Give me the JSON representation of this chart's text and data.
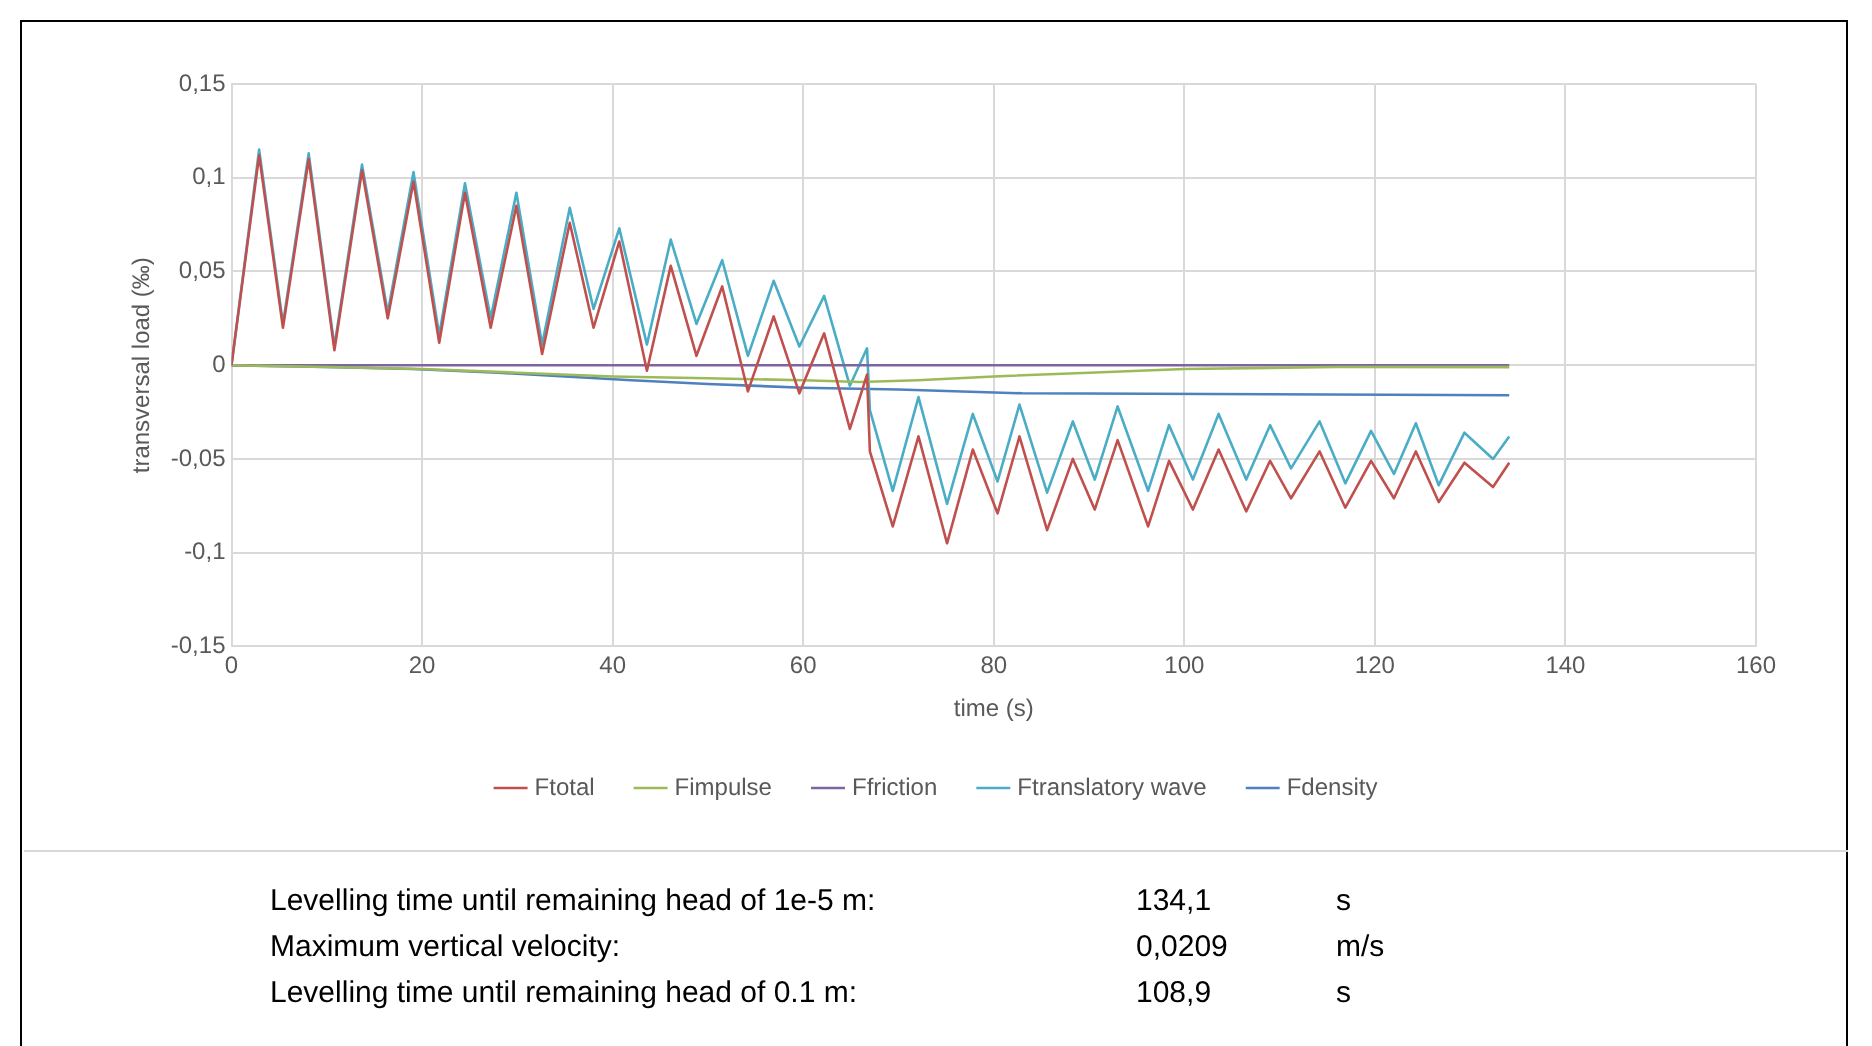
{
  "chart_data": {
    "type": "line",
    "xlabel": "time (s)",
    "ylabel": "transversal load (‰)",
    "xlim": [
      0,
      160
    ],
    "xticks": [
      0,
      20,
      40,
      60,
      80,
      100,
      120,
      140,
      160
    ],
    "ylim": [
      -0.15,
      0.15
    ],
    "yticks": [
      {
        "value": -0.15,
        "label": "-0,15"
      },
      {
        "value": -0.1,
        "label": "-0,1"
      },
      {
        "value": -0.05,
        "label": "-0,05"
      },
      {
        "value": 0,
        "label": "0"
      },
      {
        "value": 0.05,
        "label": "0,05"
      },
      {
        "value": 0.1,
        "label": "0,1"
      },
      {
        "value": 0.15,
        "label": "0,15"
      }
    ],
    "grid": true,
    "legend": "bottom",
    "marker": "none",
    "series": [
      {
        "name": "Ftotal",
        "color": "#c0504d",
        "x": [
          0,
          2.9,
          5.4,
          8.1,
          10.8,
          13.7,
          16.4,
          19.1,
          21.8,
          24.5,
          27.2,
          29.9,
          32.6,
          35.5,
          38.0,
          40.7,
          43.6,
          46.1,
          48.8,
          51.5,
          54.2,
          56.9,
          59.6,
          62.2,
          64.9,
          66.7,
          67.0,
          69.4,
          72.1,
          75.1,
          77.8,
          80.4,
          82.7,
          85.6,
          88.3,
          90.6,
          93.0,
          96.2,
          98.4,
          100.9,
          103.6,
          106.5,
          109.0,
          111.2,
          114.2,
          116.9,
          119.6,
          122.0,
          124.3,
          126.7,
          129.4,
          132.4,
          134.1
        ],
        "values": [
          0,
          0.112,
          0.02,
          0.11,
          0.008,
          0.104,
          0.025,
          0.098,
          0.012,
          0.092,
          0.02,
          0.085,
          0.006,
          0.076,
          0.02,
          0.066,
          -0.003,
          0.053,
          0.005,
          0.042,
          -0.014,
          0.026,
          -0.015,
          0.017,
          -0.034,
          -0.005,
          -0.046,
          -0.086,
          -0.038,
          -0.095,
          -0.045,
          -0.079,
          -0.038,
          -0.088,
          -0.05,
          -0.077,
          -0.04,
          -0.086,
          -0.051,
          -0.077,
          -0.045,
          -0.078,
          -0.051,
          -0.071,
          -0.046,
          -0.076,
          -0.051,
          -0.071,
          -0.046,
          -0.073,
          -0.052,
          -0.065,
          -0.052
        ]
      },
      {
        "name": "Fimpulse",
        "color": "#9bbb59",
        "x": [
          0,
          10,
          20,
          30,
          40,
          50,
          60,
          66,
          72,
          80,
          90,
          100,
          116,
          134.1
        ],
        "values": [
          0,
          -0.001,
          -0.002,
          -0.004,
          -0.006,
          -0.007,
          -0.008,
          -0.009,
          -0.008,
          -0.006,
          -0.004,
          -0.002,
          -0.001,
          -0.001
        ]
      },
      {
        "name": "Ffriction",
        "color": "#8064a2",
        "x": [
          0,
          134.1
        ],
        "values": [
          0,
          0
        ]
      },
      {
        "name": "Ftranslatory wave",
        "color": "#4bacc6",
        "x": [
          0,
          2.9,
          5.4,
          8.1,
          10.8,
          13.7,
          16.4,
          19.1,
          21.8,
          24.5,
          27.2,
          29.9,
          32.6,
          35.5,
          38.0,
          40.7,
          43.6,
          46.1,
          48.8,
          51.5,
          54.2,
          56.9,
          59.6,
          62.2,
          64.9,
          66.7,
          67.0,
          69.4,
          72.1,
          75.1,
          77.8,
          80.4,
          82.7,
          85.6,
          88.3,
          90.6,
          93.0,
          96.2,
          98.4,
          100.9,
          103.6,
          106.5,
          109.0,
          111.2,
          114.2,
          116.9,
          119.6,
          122.0,
          124.3,
          126.7,
          129.4,
          132.4,
          134.1
        ],
        "values": [
          0,
          0.115,
          0.022,
          0.113,
          0.01,
          0.107,
          0.028,
          0.103,
          0.016,
          0.097,
          0.025,
          0.092,
          0.011,
          0.084,
          0.03,
          0.073,
          0.011,
          0.067,
          0.022,
          0.056,
          0.005,
          0.045,
          0.01,
          0.037,
          -0.011,
          0.009,
          -0.024,
          -0.067,
          -0.017,
          -0.074,
          -0.026,
          -0.062,
          -0.021,
          -0.068,
          -0.03,
          -0.061,
          -0.022,
          -0.067,
          -0.032,
          -0.061,
          -0.026,
          -0.061,
          -0.032,
          -0.055,
          -0.03,
          -0.063,
          -0.035,
          -0.058,
          -0.031,
          -0.064,
          -0.036,
          -0.05,
          -0.038
        ]
      },
      {
        "name": "Fdensity",
        "color": "#4f81bd",
        "x": [
          0,
          10,
          19,
          28,
          35,
          42,
          50,
          60,
          70,
          83,
          134.1
        ],
        "values": [
          0,
          -0.001,
          -0.002,
          -0.004,
          -0.006,
          -0.008,
          -0.01,
          -0.012,
          -0.013,
          -0.015,
          -0.016
        ]
      }
    ],
    "annotations": [
      "Levelling time until remaining head of 1e-5 m:",
      "134,1",
      "s",
      "Maximum vertical velocity:",
      "0,0209",
      "m/s",
      "Levelling time until remaining head of 0.1 m:",
      "108,9",
      "s"
    ]
  }
}
